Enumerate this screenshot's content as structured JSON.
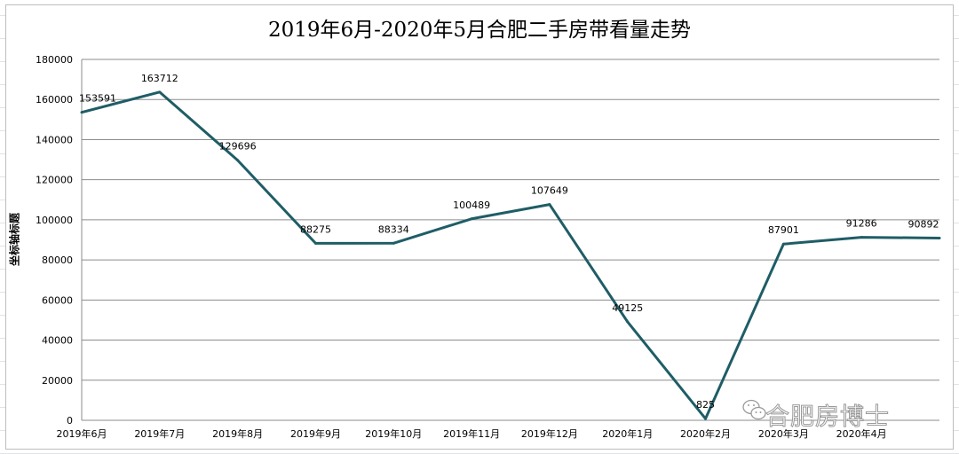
{
  "chart_data": {
    "type": "line",
    "title": "2019年6月-2020年5月合肥二手房带看量走势",
    "ylabel": "坐标轴标题",
    "xlabel": "",
    "categories": [
      "2019年6月",
      "2019年7月",
      "2019年8月",
      "2019年9月",
      "2019年10月",
      "2019年11月",
      "2019年12月",
      "2020年1月",
      "2020年2月",
      "2020年3月",
      "2020年4月",
      ""
    ],
    "values": [
      153591,
      163712,
      129696,
      88275,
      88334,
      100489,
      107649,
      49125,
      825,
      87901,
      91286,
      90892
    ],
    "ylim": [
      0,
      180000
    ],
    "yticks": [
      0,
      20000,
      40000,
      60000,
      80000,
      100000,
      120000,
      140000,
      160000,
      180000
    ],
    "grid": true,
    "legend": "none",
    "line_color": "#1f5d66"
  },
  "watermark": "合肥房博士"
}
